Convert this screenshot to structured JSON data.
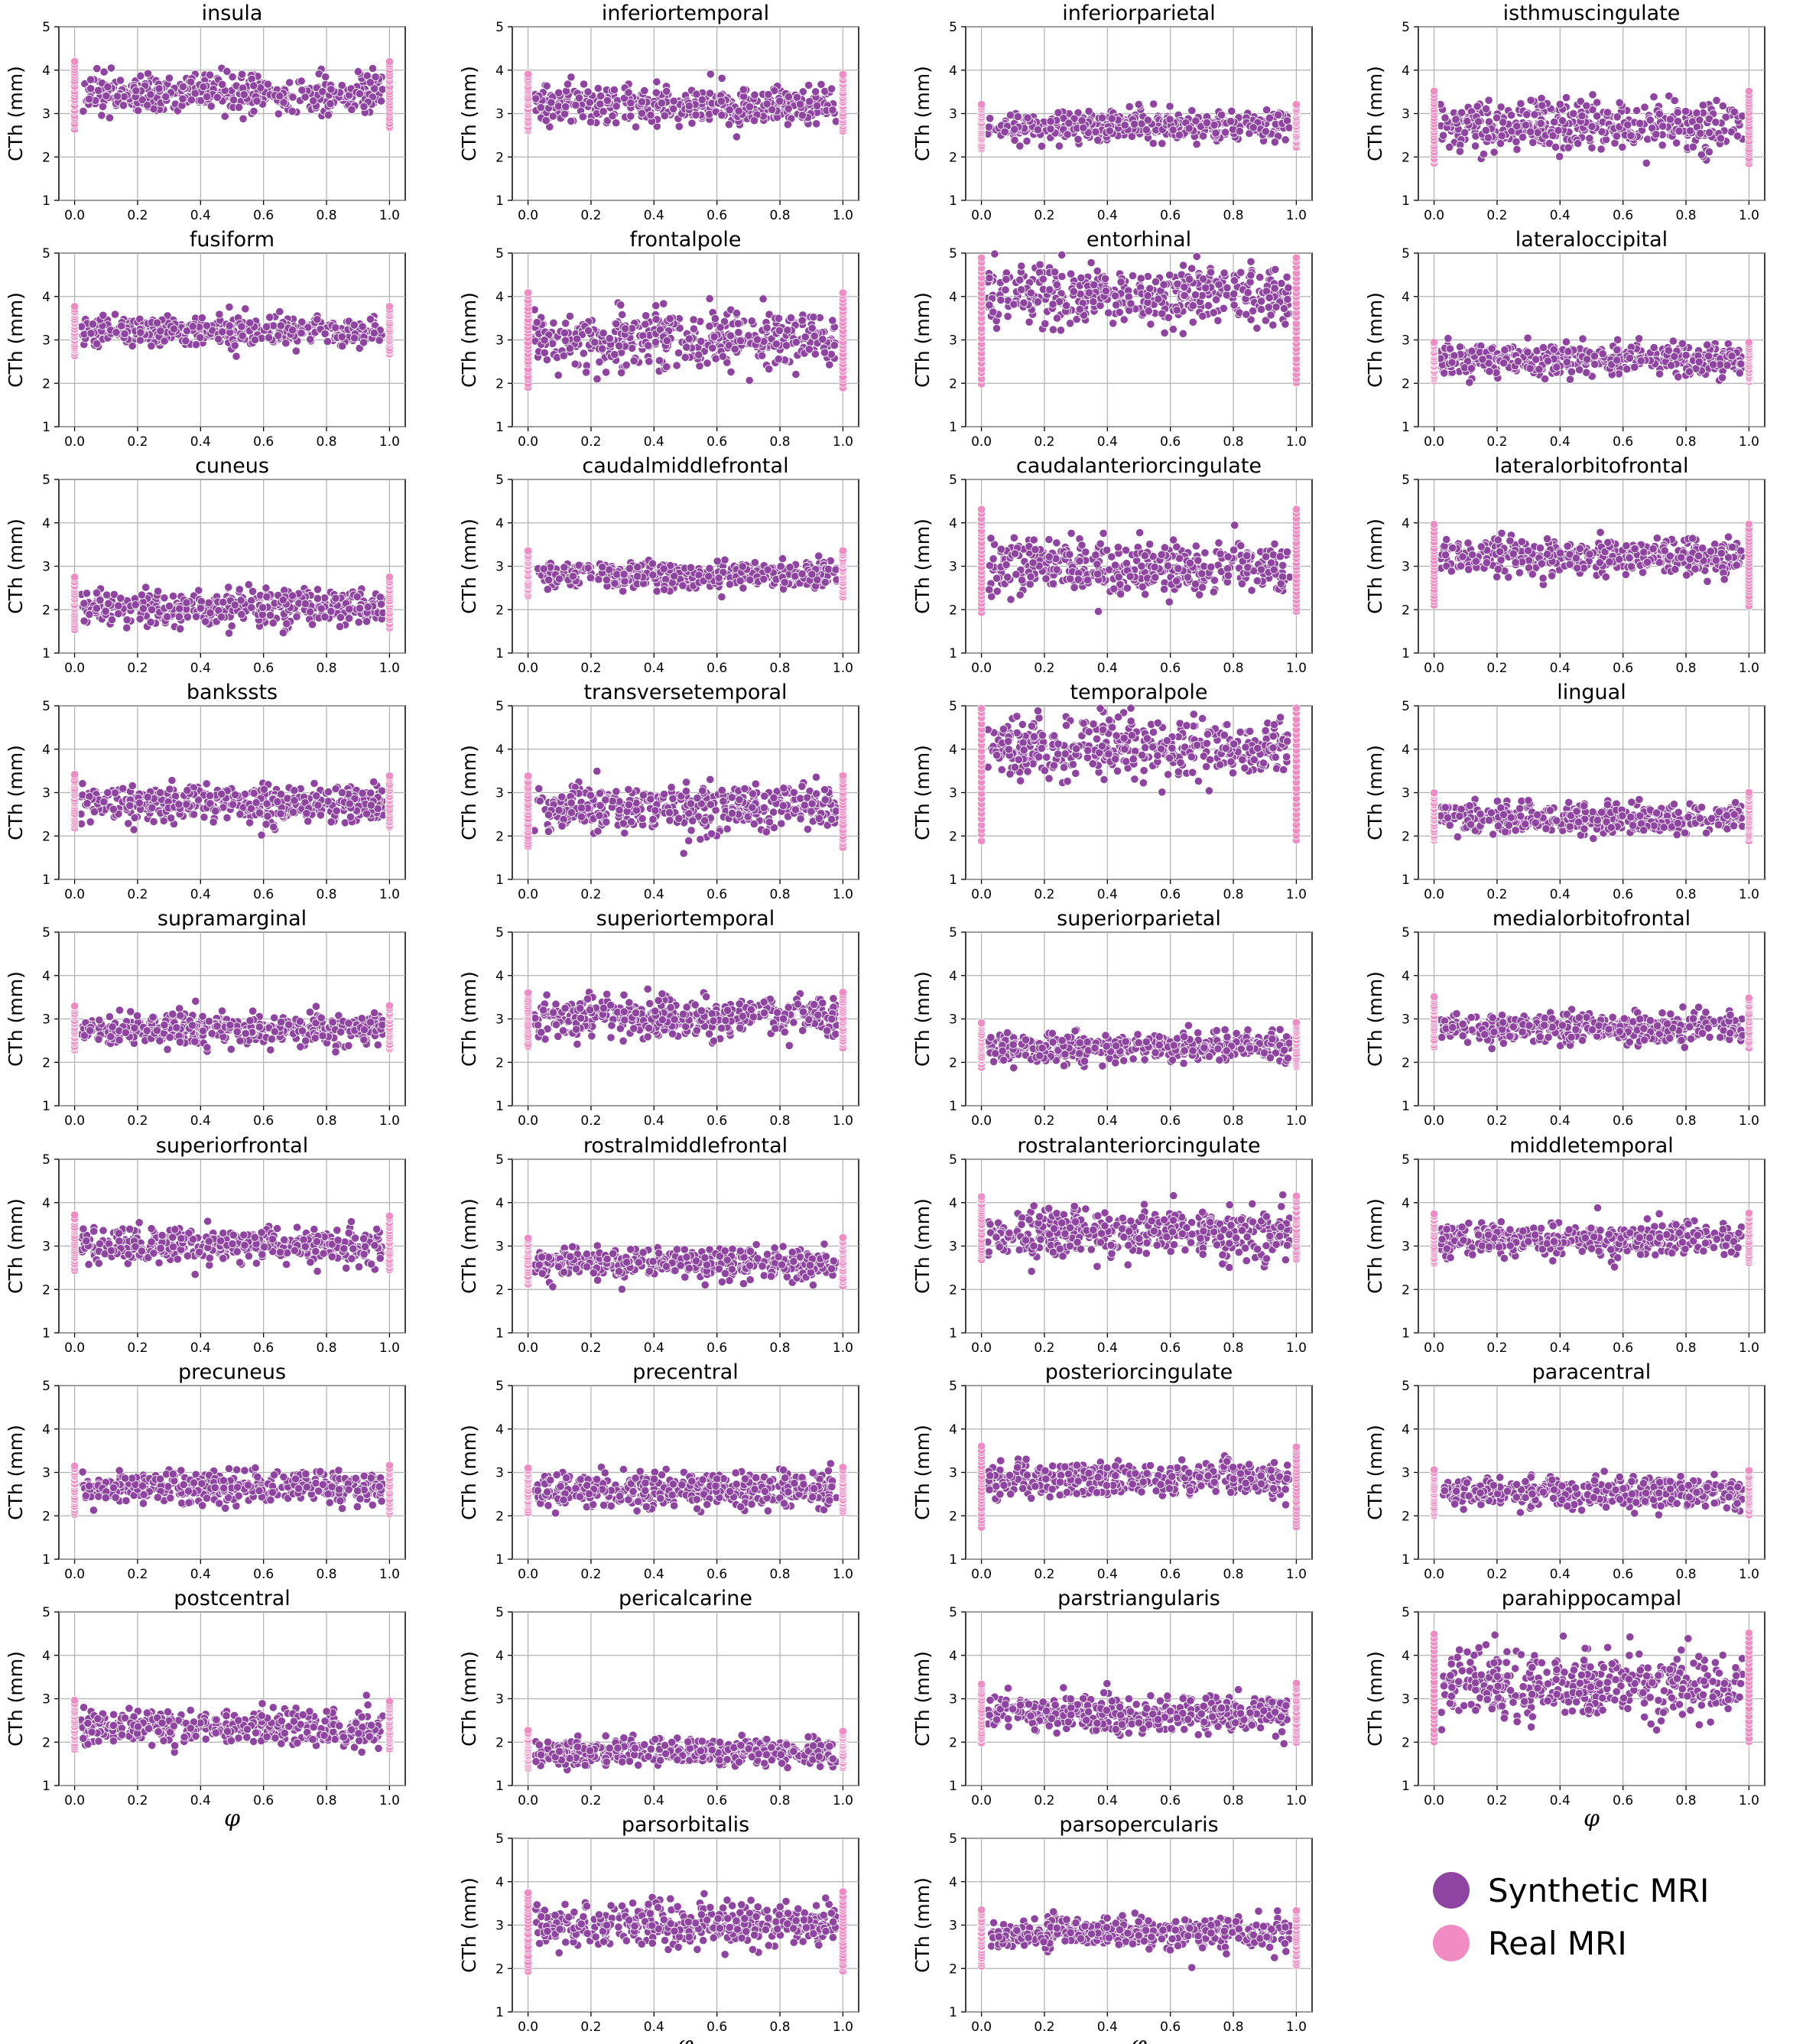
{
  "chart_data": {
    "type": "scatter",
    "xlabel": "φ",
    "ylabel": "CTh (mm)",
    "xlim": [
      -0.05,
      1.05
    ],
    "ylim": [
      1,
      5
    ],
    "x_ticks": [
      "0.0",
      "0.2",
      "0.4",
      "0.6",
      "0.8",
      "1.0"
    ],
    "y_ticks": [
      "1",
      "2",
      "3",
      "4",
      "5"
    ],
    "grid": true,
    "legend": {
      "position": "bottom-right",
      "entries": [
        {
          "label": "Synthetic MRI",
          "color": "#8e44a0"
        },
        {
          "label": "Real MRI",
          "color": "#f08bc3"
        }
      ]
    },
    "colors": {
      "synthetic": "#8e44a0",
      "real": "#f08bc3"
    },
    "panels": [
      {
        "title": "insula",
        "row": 0,
        "col": 0,
        "mean": 3.45,
        "sd": 0.22,
        "real_min": 2.65,
        "real_max": 4.2
      },
      {
        "title": "inferiortemporal",
        "row": 0,
        "col": 1,
        "mean": 3.2,
        "sd": 0.22,
        "real_min": 2.6,
        "real_max": 3.9
      },
      {
        "title": "inferiorparietal",
        "row": 0,
        "col": 2,
        "mean": 2.7,
        "sd": 0.18,
        "real_min": 2.2,
        "real_max": 3.2
      },
      {
        "title": "isthmuscingulate",
        "row": 0,
        "col": 3,
        "mean": 2.75,
        "sd": 0.28,
        "real_min": 1.85,
        "real_max": 3.5
      },
      {
        "title": "fusiform",
        "row": 1,
        "col": 0,
        "mean": 3.2,
        "sd": 0.18,
        "real_min": 2.65,
        "real_max": 3.75
      },
      {
        "title": "frontalpole",
        "row": 1,
        "col": 1,
        "mean": 3.0,
        "sd": 0.32,
        "real_min": 1.9,
        "real_max": 4.1
      },
      {
        "title": "entorhinal",
        "row": 1,
        "col": 2,
        "mean": 4.0,
        "sd": 0.35,
        "real_min": 2.0,
        "real_max": 4.9
      },
      {
        "title": "lateraloccipital",
        "row": 1,
        "col": 3,
        "mean": 2.55,
        "sd": 0.18,
        "real_min": 2.05,
        "real_max": 2.95
      },
      {
        "title": "cuneus",
        "row": 2,
        "col": 0,
        "mean": 2.05,
        "sd": 0.2,
        "real_min": 1.55,
        "real_max": 2.75
      },
      {
        "title": "caudalmiddlefrontal",
        "row": 2,
        "col": 1,
        "mean": 2.8,
        "sd": 0.15,
        "real_min": 2.3,
        "real_max": 3.35
      },
      {
        "title": "caudalanteriorcingulate",
        "row": 2,
        "col": 2,
        "mean": 3.0,
        "sd": 0.28,
        "real_min": 1.95,
        "real_max": 4.3
      },
      {
        "title": "lateralorbitofrontal",
        "row": 2,
        "col": 3,
        "mean": 3.2,
        "sd": 0.2,
        "real_min": 2.1,
        "real_max": 3.95
      },
      {
        "title": "bankssts",
        "row": 3,
        "col": 0,
        "mean": 2.75,
        "sd": 0.22,
        "real_min": 2.2,
        "real_max": 3.4
      },
      {
        "title": "transversetemporal",
        "row": 3,
        "col": 1,
        "mean": 2.65,
        "sd": 0.28,
        "real_min": 1.75,
        "real_max": 3.4
      },
      {
        "title": "temporalpole",
        "row": 3,
        "col": 2,
        "mean": 4.05,
        "sd": 0.35,
        "real_min": 1.9,
        "real_max": 4.95
      },
      {
        "title": "lingual",
        "row": 3,
        "col": 3,
        "mean": 2.4,
        "sd": 0.17,
        "real_min": 1.9,
        "real_max": 3.0
      },
      {
        "title": "supramarginal",
        "row": 4,
        "col": 0,
        "mean": 2.75,
        "sd": 0.18,
        "real_min": 2.3,
        "real_max": 3.3
      },
      {
        "title": "superiortemporal",
        "row": 4,
        "col": 1,
        "mean": 3.05,
        "sd": 0.22,
        "real_min": 2.35,
        "real_max": 3.6
      },
      {
        "title": "superiorparietal",
        "row": 4,
        "col": 2,
        "mean": 2.35,
        "sd": 0.17,
        "real_min": 1.9,
        "real_max": 2.9
      },
      {
        "title": "medialorbitofrontal",
        "row": 4,
        "col": 3,
        "mean": 2.8,
        "sd": 0.18,
        "real_min": 2.35,
        "real_max": 3.5
      },
      {
        "title": "superiorfrontal",
        "row": 5,
        "col": 0,
        "mean": 3.0,
        "sd": 0.2,
        "real_min": 2.45,
        "real_max": 3.7
      },
      {
        "title": "rostralmiddlefrontal",
        "row": 5,
        "col": 1,
        "mean": 2.6,
        "sd": 0.18,
        "real_min": 2.1,
        "real_max": 3.2
      },
      {
        "title": "rostralanteriorcingulate",
        "row": 5,
        "col": 2,
        "mean": 3.3,
        "sd": 0.28,
        "real_min": 2.7,
        "real_max": 4.15
      },
      {
        "title": "middletemporal",
        "row": 5,
        "col": 3,
        "mean": 3.15,
        "sd": 0.18,
        "real_min": 2.6,
        "real_max": 3.75
      },
      {
        "title": "precuneus",
        "row": 6,
        "col": 0,
        "mean": 2.65,
        "sd": 0.18,
        "real_min": 2.05,
        "real_max": 3.15
      },
      {
        "title": "precentral",
        "row": 6,
        "col": 1,
        "mean": 2.6,
        "sd": 0.2,
        "real_min": 2.05,
        "real_max": 3.1
      },
      {
        "title": "posteriorcingulate",
        "row": 6,
        "col": 2,
        "mean": 2.85,
        "sd": 0.2,
        "real_min": 1.75,
        "real_max": 3.6
      },
      {
        "title": "paracentral",
        "row": 6,
        "col": 3,
        "mean": 2.55,
        "sd": 0.18,
        "real_min": 2.0,
        "real_max": 3.05
      },
      {
        "title": "postcentral",
        "row": 7,
        "col": 0,
        "mean": 2.35,
        "sd": 0.2,
        "real_min": 1.85,
        "real_max": 2.95
      },
      {
        "title": "pericalcarine",
        "row": 7,
        "col": 1,
        "mean": 1.75,
        "sd": 0.15,
        "real_min": 1.4,
        "real_max": 2.25
      },
      {
        "title": "parstriangularis",
        "row": 7,
        "col": 2,
        "mean": 2.65,
        "sd": 0.2,
        "real_min": 2.0,
        "real_max": 3.35
      },
      {
        "title": "parahippocampal",
        "row": 7,
        "col": 3,
        "mean": 3.3,
        "sd": 0.4,
        "real_min": 2.0,
        "real_max": 4.5
      },
      {
        "title": "parsorbitalis",
        "row": 8,
        "col": 1,
        "mean": 3.0,
        "sd": 0.25,
        "real_min": 1.95,
        "real_max": 3.75
      },
      {
        "title": "parsopercularis",
        "row": 8,
        "col": 2,
        "mean": 2.8,
        "sd": 0.18,
        "real_min": 2.05,
        "real_max": 3.35
      }
    ]
  }
}
